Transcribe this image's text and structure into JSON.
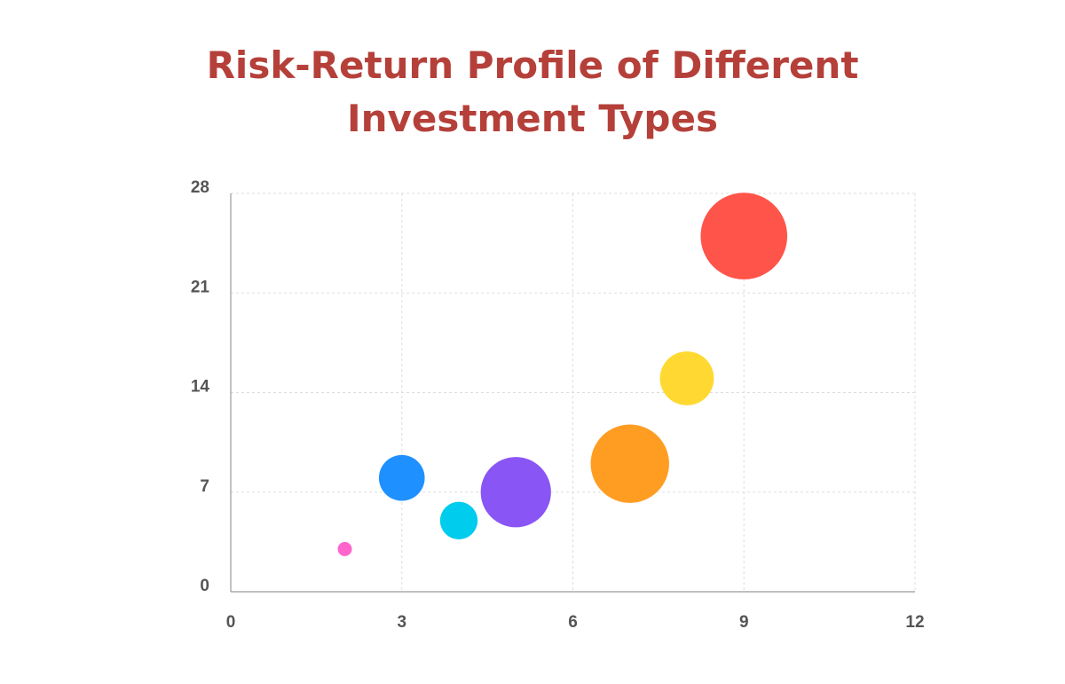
{
  "chart_data": {
    "type": "scatter",
    "variant": "bubble",
    "title": "Risk-Return Profile of Different\nInvestment Types",
    "xlabel": "",
    "ylabel": "",
    "xlim": [
      0,
      12
    ],
    "ylim": [
      0,
      28
    ],
    "x_ticks": [
      "0",
      "3",
      "6",
      "9",
      "12"
    ],
    "y_ticks": [
      "0",
      "7",
      "14",
      "21",
      "28"
    ],
    "grid": true,
    "legend": "none",
    "points": [
      {
        "x": 2,
        "y": 3,
        "size": 1,
        "color": "#ff66cc"
      },
      {
        "x": 3,
        "y": 8,
        "size": 4,
        "color": "#1e90ff"
      },
      {
        "x": 4,
        "y": 5,
        "size": 3,
        "color": "#00ccee"
      },
      {
        "x": 5,
        "y": 7,
        "size": 7,
        "color": "#8a55f5"
      },
      {
        "x": 7,
        "y": 9,
        "size": 8,
        "color": "#ff9d22"
      },
      {
        "x": 8,
        "y": 15,
        "size": 5,
        "color": "#ffd932"
      },
      {
        "x": 9,
        "y": 25,
        "size": 9,
        "color": "#ff5449"
      }
    ]
  }
}
